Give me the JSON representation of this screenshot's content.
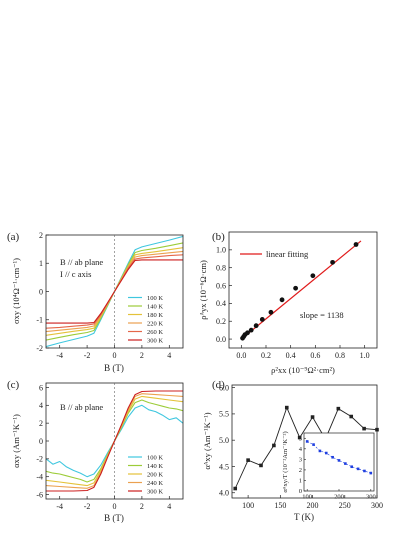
{
  "chart_data": [
    {
      "panel": "(a)",
      "type": "line",
      "xlabel": "B (T)",
      "ylabel": "σxy (10⁴Ω⁻¹·cm⁻¹)",
      "xlim": [
        -5,
        5
      ],
      "ylim": [
        -2,
        2
      ],
      "xticks": [
        -4,
        -2,
        0,
        2,
        4
      ],
      "yticks": [
        -2,
        -1,
        0,
        1,
        2
      ],
      "annotations": [
        "B // ab plane",
        "I // c axis"
      ],
      "legend_position": "lower-right",
      "series": [
        {
          "name": "100 K",
          "color": "#3fc7df",
          "x": [
            -5,
            -4,
            -3,
            -2,
            -1.5,
            -1,
            -0.5,
            0,
            0.5,
            1,
            1.5,
            2,
            3,
            4,
            5
          ],
          "y": [
            -1.95,
            -1.82,
            -1.7,
            -1.58,
            -1.48,
            -1.0,
            -0.5,
            0,
            0.5,
            1.0,
            1.48,
            1.58,
            1.7,
            1.82,
            1.95
          ]
        },
        {
          "name": "140 K",
          "color": "#9ccc38",
          "x": [
            -5,
            -4,
            -3,
            -2,
            -1.5,
            -1,
            -0.5,
            0,
            0.5,
            1,
            1.5,
            2,
            3,
            4,
            5
          ],
          "y": [
            -1.72,
            -1.62,
            -1.53,
            -1.45,
            -1.38,
            -0.95,
            -0.48,
            0,
            0.48,
            0.95,
            1.38,
            1.45,
            1.53,
            1.62,
            1.72
          ]
        },
        {
          "name": "180 K",
          "color": "#e4c23a",
          "x": [
            -5,
            -4,
            -3,
            -2,
            -1.5,
            -1,
            -0.5,
            0,
            0.5,
            1,
            1.5,
            2,
            3,
            4,
            5
          ],
          "y": [
            -1.55,
            -1.48,
            -1.41,
            -1.35,
            -1.3,
            -0.9,
            -0.45,
            0,
            0.45,
            0.9,
            1.3,
            1.35,
            1.41,
            1.48,
            1.55
          ]
        },
        {
          "name": "220 K",
          "color": "#eba150",
          "x": [
            -5,
            -4,
            -3,
            -2,
            -1.5,
            -1,
            -0.5,
            0,
            0.5,
            1,
            1.5,
            2,
            3,
            4,
            5
          ],
          "y": [
            -1.42,
            -1.37,
            -1.32,
            -1.27,
            -1.22,
            -0.86,
            -0.43,
            0,
            0.43,
            0.86,
            1.22,
            1.27,
            1.32,
            1.37,
            1.42
          ]
        },
        {
          "name": "260 K",
          "color": "#e5674a",
          "x": [
            -5,
            -4,
            -3,
            -2,
            -1.5,
            -1,
            -0.5,
            0,
            0.5,
            1,
            1.5,
            2,
            3,
            4,
            5
          ],
          "y": [
            -1.3,
            -1.27,
            -1.23,
            -1.19,
            -1.15,
            -0.82,
            -0.41,
            0,
            0.41,
            0.82,
            1.15,
            1.19,
            1.23,
            1.27,
            1.3
          ]
        },
        {
          "name": "300 K",
          "color": "#cc1f1f",
          "x": [
            -5,
            -4,
            -3,
            -2,
            -1.5,
            -1,
            -0.5,
            0,
            0.5,
            1,
            1.5,
            2,
            3,
            4,
            5
          ],
          "y": [
            -1.12,
            -1.12,
            -1.12,
            -1.12,
            -1.1,
            -0.78,
            -0.39,
            0,
            0.39,
            0.78,
            1.1,
            1.12,
            1.12,
            1.12,
            1.12
          ]
        }
      ]
    },
    {
      "panel": "(b)",
      "type": "scatter",
      "xlabel": "ρ²xx (10⁻⁹Ω²·cm²)",
      "ylabel": "ρᴬyx (10⁻⁶Ω·cm)",
      "xlim": [
        -0.1,
        1.1
      ],
      "ylim": [
        -0.1,
        1.2
      ],
      "xticks": [
        0.0,
        0.2,
        0.4,
        0.6,
        0.8,
        1.0
      ],
      "yticks": [
        0.0,
        0.2,
        0.4,
        0.6,
        0.8,
        1.0
      ],
      "legend": [
        "linear fitting"
      ],
      "legend_position": "top-left",
      "annotation": "slope = 1138",
      "points": {
        "x": [
          0.01,
          0.02,
          0.03,
          0.05,
          0.08,
          0.12,
          0.17,
          0.24,
          0.33,
          0.44,
          0.58,
          0.74,
          0.93
        ],
        "y": [
          0.01,
          0.03,
          0.05,
          0.07,
          0.1,
          0.15,
          0.22,
          0.3,
          0.44,
          0.57,
          0.71,
          0.86,
          1.06
        ]
      },
      "fit": {
        "x": [
          0.0,
          0.97
        ],
        "y": [
          0.0,
          1.1
        ],
        "color": "#e01b1b"
      }
    },
    {
      "panel": "(c)",
      "type": "line",
      "xlabel": "B (T)",
      "ylabel": "αxy (Am⁻¹K⁻¹)",
      "xlim": [
        -5,
        5
      ],
      "ylim": [
        -6.5,
        6.5
      ],
      "xticks": [
        -4,
        -2,
        0,
        2,
        4
      ],
      "yticks": [
        -6,
        -4,
        -2,
        0,
        2,
        4,
        6
      ],
      "annotation": "B // ab plane",
      "legend_position": "lower-right",
      "series": [
        {
          "name": "100 K",
          "color": "#3fc7df",
          "x": [
            -5,
            -4.5,
            -4,
            -3.5,
            -3,
            -2.5,
            -2,
            -1.5,
            -1,
            -0.5,
            0,
            0.5,
            1,
            1.5,
            2,
            2.5,
            3,
            3.5,
            4,
            4.5,
            5
          ],
          "y": [
            -2.0,
            -2.6,
            -2.3,
            -2.9,
            -3.3,
            -3.6,
            -4.0,
            -3.7,
            -2.7,
            -1.3,
            0,
            1.3,
            2.7,
            3.7,
            4.0,
            3.5,
            3.3,
            2.9,
            2.4,
            2.6,
            2.0
          ]
        },
        {
          "name": "140 K",
          "color": "#9ccc38",
          "x": [
            -5,
            -4.5,
            -4,
            -3.5,
            -3,
            -2.5,
            -2,
            -1.5,
            -1,
            -0.5,
            0,
            0.5,
            1,
            1.5,
            2,
            2.5,
            3,
            3.5,
            4,
            4.5,
            5
          ],
          "y": [
            -3.4,
            -3.6,
            -3.7,
            -3.9,
            -4.1,
            -4.3,
            -4.6,
            -4.3,
            -3.1,
            -1.5,
            0,
            1.5,
            3.1,
            4.3,
            4.6,
            4.3,
            4.1,
            3.9,
            3.7,
            3.6,
            3.4
          ]
        },
        {
          "name": "200 K",
          "color": "#e4c23a",
          "x": [
            -5,
            -4,
            -3,
            -2,
            -1.5,
            -1,
            -0.5,
            0,
            0.5,
            1,
            1.5,
            2,
            3,
            4,
            5
          ],
          "y": [
            -4.4,
            -4.6,
            -4.8,
            -5.0,
            -4.7,
            -3.3,
            -1.6,
            0,
            1.6,
            3.3,
            4.7,
            5.0,
            4.8,
            4.6,
            4.4
          ]
        },
        {
          "name": "240 K",
          "color": "#eba150",
          "x": [
            -5,
            -4,
            -3,
            -2,
            -1.5,
            -1,
            -0.5,
            0,
            0.5,
            1,
            1.5,
            2,
            3,
            4,
            5
          ],
          "y": [
            -5.0,
            -5.1,
            -5.2,
            -5.3,
            -5.0,
            -3.5,
            -1.7,
            0,
            1.7,
            3.5,
            5.0,
            5.3,
            5.2,
            5.1,
            5.0
          ]
        },
        {
          "name": "300 K",
          "color": "#cc1f1f",
          "x": [
            -5,
            -4,
            -3,
            -2,
            -1.5,
            -1,
            -0.5,
            0,
            0.5,
            1,
            1.5,
            2,
            3,
            4,
            5
          ],
          "y": [
            -5.6,
            -5.6,
            -5.6,
            -5.55,
            -5.2,
            -3.7,
            -1.8,
            0,
            1.8,
            3.7,
            5.2,
            5.55,
            5.6,
            5.6,
            5.6
          ]
        }
      ]
    },
    {
      "panel": "(d)",
      "type": "line",
      "xlabel": "T (K)",
      "ylabel": "αᴬxy (Am⁻¹K⁻¹)",
      "xlim": [
        75,
        300
      ],
      "ylim": [
        3.9,
        6.05
      ],
      "xticks": [
        100,
        150,
        200,
        250,
        300
      ],
      "yticks": [
        4.0,
        4.5,
        5.0,
        5.5,
        6.0
      ],
      "marker": "filled-square",
      "color": "#222222",
      "x": [
        80,
        100,
        120,
        140,
        160,
        180,
        200,
        220,
        240,
        260,
        280,
        300
      ],
      "y": [
        4.08,
        4.62,
        4.52,
        4.9,
        5.62,
        5.05,
        5.44,
        5.02,
        5.6,
        5.45,
        5.22,
        5.2
      ],
      "inset": {
        "type": "line",
        "ylabel": "αᴬxy/T (10⁻²Am⁻¹K⁻²)",
        "xlim": [
          90,
          310
        ],
        "ylim": [
          0,
          5.5
        ],
        "xticks": [
          100,
          200,
          300
        ],
        "yticks": [
          0,
          1,
          2,
          3,
          4,
          5
        ],
        "color": "#1f3fe0",
        "marker": "filled-square",
        "x": [
          100,
          120,
          140,
          160,
          180,
          200,
          220,
          240,
          260,
          280,
          300
        ],
        "y": [
          4.7,
          4.4,
          3.8,
          3.6,
          3.2,
          2.9,
          2.6,
          2.3,
          2.1,
          1.9,
          1.7
        ]
      }
    }
  ]
}
